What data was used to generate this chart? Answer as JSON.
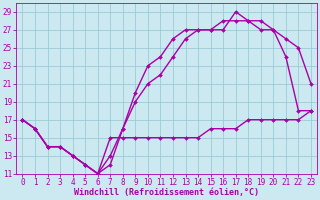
{
  "xlabel": "Windchill (Refroidissement éolien,°C)",
  "bg_color": "#cce8f0",
  "grid_color": "#99ccd8",
  "line_color": "#aa00aa",
  "xlim": [
    -0.5,
    23.5
  ],
  "ylim": [
    11,
    30
  ],
  "xticks": [
    0,
    1,
    2,
    3,
    4,
    5,
    6,
    7,
    8,
    9,
    10,
    11,
    12,
    13,
    14,
    15,
    16,
    17,
    18,
    19,
    20,
    21,
    22,
    23
  ],
  "yticks": [
    11,
    13,
    15,
    17,
    19,
    21,
    23,
    25,
    27,
    29
  ],
  "line1_x": [
    0,
    1,
    2,
    3,
    4,
    5,
    6,
    7,
    8,
    9,
    10,
    11,
    12,
    13,
    14,
    15,
    16,
    17,
    18,
    19,
    20,
    21,
    22,
    23
  ],
  "line1_y": [
    17,
    16,
    14,
    14,
    13,
    12,
    11,
    12,
    16,
    19,
    21,
    22,
    24,
    26,
    27,
    27,
    27,
    29,
    28,
    28,
    27,
    26,
    25,
    21
  ],
  "line2_x": [
    0,
    1,
    2,
    3,
    4,
    5,
    6,
    7,
    8,
    9,
    10,
    11,
    12,
    13,
    14,
    15,
    16,
    17,
    18,
    19,
    20,
    21,
    22,
    23
  ],
  "line2_y": [
    17,
    16,
    14,
    14,
    13,
    12,
    11,
    13,
    16,
    20,
    23,
    24,
    26,
    27,
    27,
    27,
    28,
    28,
    28,
    27,
    27,
    24,
    18,
    18
  ],
  "line3_x": [
    0,
    1,
    2,
    3,
    4,
    5,
    6,
    7,
    8,
    9,
    10,
    11,
    12,
    13,
    14,
    15,
    16,
    17,
    18,
    19,
    20,
    21,
    22,
    23
  ],
  "line3_y": [
    17,
    16,
    14,
    14,
    13,
    12,
    11,
    15,
    15,
    15,
    15,
    15,
    15,
    15,
    15,
    16,
    16,
    16,
    17,
    17,
    17,
    17,
    17,
    18
  ],
  "marker": "D",
  "marker_size": 2,
  "line_width": 1.0,
  "font_size_label": 6,
  "font_size_tick": 5.5
}
